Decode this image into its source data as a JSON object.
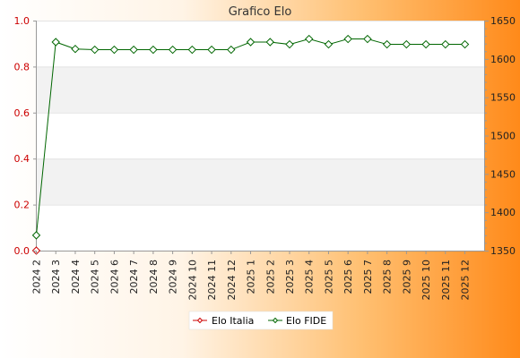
{
  "chart_data": {
    "type": "line",
    "title": "Grafico Elo",
    "categories": [
      "2024 2",
      "2024 3",
      "2024 4",
      "2024 5",
      "2024 6",
      "2024 7",
      "2024 8",
      "2024 9",
      "2024 10",
      "2024 11",
      "2024 12",
      "2025 1",
      "2025 2",
      "2025 3",
      "2025 4",
      "2025 5",
      "2025 6",
      "2025 7",
      "2025 8",
      "2025 9",
      "2025 10",
      "2025 11",
      "2025 12"
    ],
    "y_left": {
      "ylim": [
        0,
        1.0
      ],
      "ticks": [
        "0.0",
        "0.2",
        "0.4",
        "0.6",
        "0.8",
        "1.0"
      ],
      "color": "#cc0000"
    },
    "y_right": {
      "ylim": [
        1350,
        1650
      ],
      "ticks": [
        "1350",
        "1400",
        "1450",
        "1500",
        "1550",
        "1600",
        "1650"
      ]
    },
    "series": [
      {
        "name": "Elo Italia",
        "axis": "left",
        "color": "#cc0000",
        "values": [
          0,
          null,
          null,
          null,
          null,
          null,
          null,
          null,
          null,
          null,
          null,
          null,
          null,
          null,
          null,
          null,
          null,
          null,
          null,
          null,
          null,
          null,
          null
        ]
      },
      {
        "name": "Elo FIDE",
        "axis": "right",
        "color": "#006600",
        "values": [
          1370,
          1622,
          1613,
          1612,
          1612,
          1612,
          1612,
          1612,
          1612,
          1612,
          1612,
          1622,
          1622,
          1619,
          1626,
          1619,
          1626,
          1626,
          1619,
          1619,
          1619,
          1619,
          1619
        ]
      }
    ],
    "grid": true,
    "legend": "bottom-center"
  }
}
